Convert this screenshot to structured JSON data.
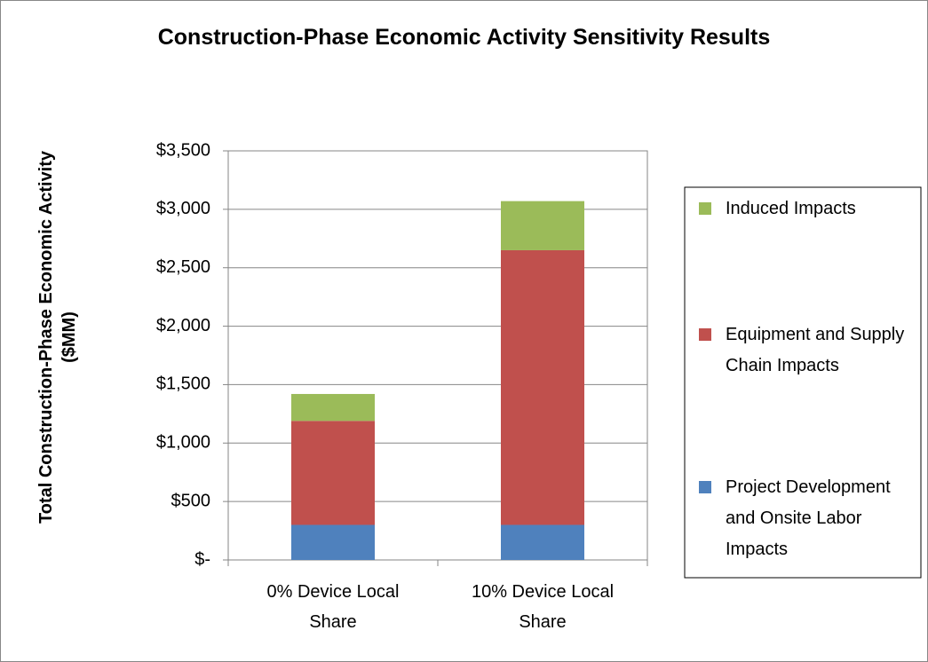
{
  "chart_data": {
    "type": "stacked_bar",
    "title": "Construction-Phase Economic Activity Sensitivity Results",
    "y_label": "Total Construction-Phase Economic Activity ($MM)",
    "categories": [
      "0% Device Local Share",
      "10% Device Local Share"
    ],
    "series": [
      {
        "name": "Project Development and Onsite Labor Impacts",
        "color": "#4f81bd",
        "values": [
          300,
          300
        ]
      },
      {
        "name": "Equipment and Supply Chain Impacts",
        "color": "#c0504d",
        "values": [
          890,
          2350
        ]
      },
      {
        "name": "Induced Impacts",
        "color": "#9bbb59",
        "values": [
          230,
          420
        ]
      }
    ],
    "ylim": [
      0,
      3500
    ],
    "yticks": [
      {
        "value": 0,
        "label": "$-"
      },
      {
        "value": 500,
        "label": "$500"
      },
      {
        "value": 1000,
        "label": "$1,000"
      },
      {
        "value": 1500,
        "label": "$1,500"
      },
      {
        "value": 2000,
        "label": "$2,000"
      },
      {
        "value": 2500,
        "label": "$2,500"
      },
      {
        "value": 3000,
        "label": "$3,000"
      },
      {
        "value": 3500,
        "label": "$3,500"
      }
    ],
    "grid": true,
    "legend": "right"
  }
}
